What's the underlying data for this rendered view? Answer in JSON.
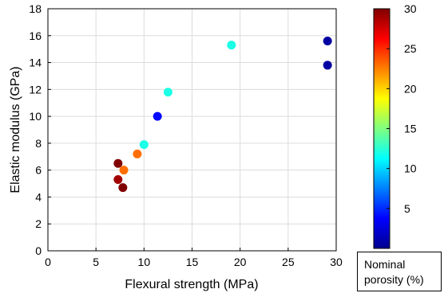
{
  "chart_data": {
    "type": "scatter",
    "xlabel": "Flexural strength (MPa)",
    "ylabel": "Elastic modulus (GPa)",
    "xlim": [
      0,
      30
    ],
    "ylim": [
      0,
      18
    ],
    "xticks": [
      "0",
      "5",
      "10",
      "15",
      "20",
      "25",
      "30"
    ],
    "yticks": [
      "0",
      "2",
      "4",
      "6",
      "8",
      "10",
      "12",
      "14",
      "16",
      "18"
    ],
    "grid": true,
    "colormap": "jet",
    "colorbar": {
      "range": [
        0,
        30
      ],
      "ticks": [
        "5",
        "10",
        "15",
        "20",
        "25",
        "30"
      ],
      "title_line1": "Nominal",
      "title_line2": "porosity (%)"
    },
    "points": [
      {
        "x": 7.3,
        "y": 6.5,
        "porosity": 30
      },
      {
        "x": 7.3,
        "y": 5.3,
        "porosity": 29
      },
      {
        "x": 7.8,
        "y": 4.7,
        "porosity": 30
      },
      {
        "x": 7.9,
        "y": 6.0,
        "porosity": 23
      },
      {
        "x": 9.3,
        "y": 7.2,
        "porosity": 23
      },
      {
        "x": 10.0,
        "y": 7.9,
        "porosity": 12
      },
      {
        "x": 11.4,
        "y": 10.0,
        "porosity": 4
      },
      {
        "x": 12.5,
        "y": 11.8,
        "porosity": 12
      },
      {
        "x": 19.1,
        "y": 15.3,
        "porosity": 12
      },
      {
        "x": 29.1,
        "y": 15.6,
        "porosity": 1
      },
      {
        "x": 29.1,
        "y": 13.8,
        "porosity": 1
      }
    ]
  }
}
